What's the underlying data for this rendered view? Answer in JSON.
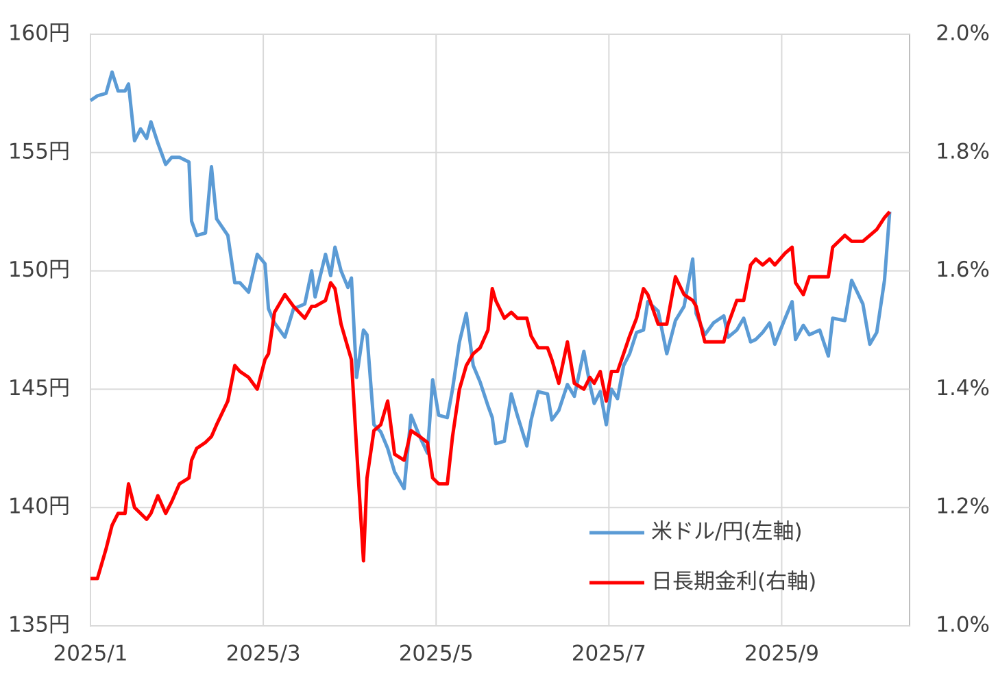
{
  "chart_data": {
    "type": "line",
    "x": [
      1.0,
      1.08,
      1.18,
      1.25,
      1.32,
      1.4,
      1.44,
      1.51,
      1.58,
      1.65,
      1.7,
      1.78,
      1.87,
      1.94,
      2.03,
      2.14,
      2.17,
      2.23,
      2.33,
      2.4,
      2.46,
      2.59,
      2.67,
      2.73,
      2.83,
      2.93,
      3.02,
      3.06,
      3.13,
      3.25,
      3.35,
      3.48,
      3.56,
      3.6,
      3.72,
      3.78,
      3.83,
      3.9,
      3.98,
      4.02,
      4.08,
      4.16,
      4.2,
      4.28,
      4.36,
      4.44,
      4.52,
      4.63,
      4.71,
      4.81,
      4.9,
      4.96,
      5.03,
      5.13,
      5.19,
      5.27,
      5.35,
      5.43,
      5.51,
      5.6,
      5.65,
      5.69,
      5.79,
      5.87,
      5.94,
      6.05,
      6.1,
      6.18,
      6.29,
      6.34,
      6.42,
      6.52,
      6.6,
      6.71,
      6.78,
      6.83,
      6.9,
      6.97,
      7.03,
      7.1,
      7.17,
      7.24,
      7.32,
      7.4,
      7.45,
      7.57,
      7.67,
      7.77,
      7.87,
      7.97,
      8.01,
      8.11,
      8.21,
      8.33,
      8.38,
      8.48,
      8.56,
      8.64,
      8.7,
      8.78,
      8.86,
      8.92,
      9.04,
      9.12,
      9.16,
      9.25,
      9.32,
      9.44,
      9.54,
      9.59,
      9.73,
      9.81,
      9.94,
      10.02,
      10.1,
      10.19,
      10.25
    ],
    "series": [
      {
        "name": "米ドル/円(左軸)",
        "color": "#5b9bd5",
        "axis": "y",
        "values": [
          157.2,
          157.4,
          157.5,
          158.4,
          157.6,
          157.6,
          157.9,
          155.5,
          156.0,
          155.6,
          156.3,
          155.4,
          154.5,
          154.8,
          154.8,
          154.6,
          152.1,
          151.5,
          151.6,
          154.4,
          152.2,
          151.5,
          149.5,
          149.5,
          149.1,
          150.7,
          150.3,
          148.4,
          147.8,
          147.2,
          148.4,
          148.6,
          150.0,
          148.9,
          150.7,
          149.8,
          151.0,
          150.0,
          149.3,
          149.7,
          145.5,
          147.5,
          147.3,
          143.5,
          143.2,
          142.5,
          141.5,
          140.8,
          143.9,
          143.0,
          142.3,
          145.4,
          143.9,
          143.8,
          145.0,
          147.0,
          148.2,
          146.0,
          145.3,
          144.3,
          143.8,
          142.7,
          142.8,
          144.8,
          143.9,
          142.6,
          143.7,
          144.9,
          144.8,
          143.7,
          144.1,
          145.2,
          144.7,
          146.6,
          145.2,
          144.4,
          144.9,
          143.5,
          145.0,
          144.6,
          146.0,
          146.5,
          147.4,
          147.5,
          148.7,
          148.3,
          146.5,
          147.9,
          148.5,
          150.5,
          148.2,
          147.3,
          147.8,
          148.1,
          147.2,
          147.5,
          148.0,
          147.0,
          147.1,
          147.4,
          147.8,
          146.9,
          148.0,
          148.7,
          147.1,
          147.7,
          147.3,
          147.5,
          146.4,
          148.0,
          147.9,
          149.6,
          148.6,
          146.9,
          147.4,
          149.6,
          152.5
        ]
      },
      {
        "name": "日長期金利(右軸)",
        "color": "#ff0000",
        "axis": "y2",
        "values": [
          1.08,
          1.08,
          1.13,
          1.17,
          1.19,
          1.19,
          1.24,
          1.2,
          1.19,
          1.18,
          1.19,
          1.22,
          1.19,
          1.21,
          1.24,
          1.25,
          1.28,
          1.3,
          1.31,
          1.32,
          1.34,
          1.38,
          1.44,
          1.43,
          1.42,
          1.4,
          1.45,
          1.46,
          1.53,
          1.56,
          1.54,
          1.52,
          1.54,
          1.54,
          1.55,
          1.58,
          1.57,
          1.51,
          1.47,
          1.45,
          1.3,
          1.11,
          1.25,
          1.33,
          1.34,
          1.38,
          1.29,
          1.28,
          1.33,
          1.32,
          1.31,
          1.25,
          1.24,
          1.24,
          1.32,
          1.4,
          1.44,
          1.46,
          1.47,
          1.5,
          1.57,
          1.55,
          1.52,
          1.53,
          1.52,
          1.52,
          1.49,
          1.47,
          1.47,
          1.45,
          1.41,
          1.48,
          1.41,
          1.4,
          1.42,
          1.41,
          1.43,
          1.38,
          1.43,
          1.43,
          1.46,
          1.49,
          1.52,
          1.57,
          1.56,
          1.51,
          1.51,
          1.59,
          1.56,
          1.55,
          1.54,
          1.48,
          1.48,
          1.48,
          1.51,
          1.55,
          1.55,
          1.61,
          1.62,
          1.61,
          1.62,
          1.61,
          1.63,
          1.64,
          1.58,
          1.56,
          1.59,
          1.59,
          1.59,
          1.64,
          1.66,
          1.65,
          1.65,
          1.66,
          1.67,
          1.69,
          1.7
        ]
      }
    ],
    "xlim": [
      1,
      10.48
    ],
    "xticks": [
      {
        "value": 1,
        "label": "2025/1"
      },
      {
        "value": 3,
        "label": "2025/3"
      },
      {
        "value": 5,
        "label": "2025/5"
      },
      {
        "value": 7,
        "label": "2025/7"
      },
      {
        "value": 9,
        "label": "2025/9"
      }
    ],
    "ylim": [
      135,
      160
    ],
    "yticks": [
      {
        "value": 135,
        "label": "135円"
      },
      {
        "value": 140,
        "label": "140円"
      },
      {
        "value": 145,
        "label": "145円"
      },
      {
        "value": 150,
        "label": "150円"
      },
      {
        "value": 155,
        "label": "155円"
      },
      {
        "value": 160,
        "label": "160円"
      }
    ],
    "y2lim": [
      1.0,
      2.0
    ],
    "y2ticks": [
      {
        "value": 1.0,
        "label": "1.0%"
      },
      {
        "value": 1.2,
        "label": "1.2%"
      },
      {
        "value": 1.4,
        "label": "1.4%"
      },
      {
        "value": 1.6,
        "label": "1.6%"
      },
      {
        "value": 1.8,
        "label": "1.8%"
      },
      {
        "value": 2.0,
        "label": "2.0%"
      }
    ],
    "grid": true,
    "legend": "lower-right"
  }
}
